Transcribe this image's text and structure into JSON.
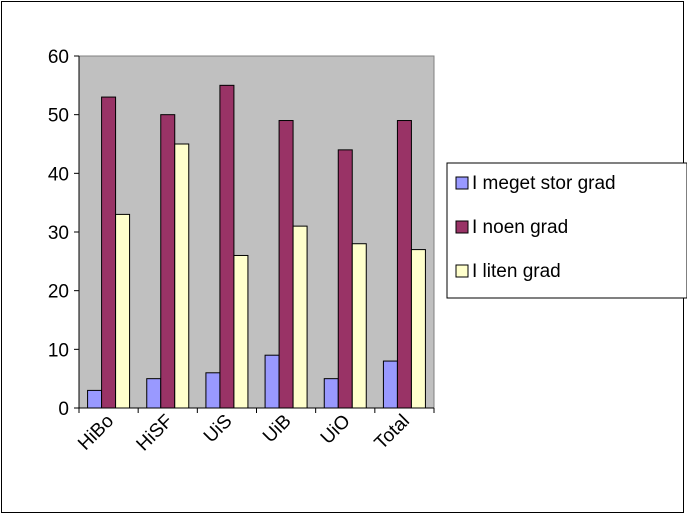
{
  "chart_data": {
    "type": "bar",
    "categories": [
      "HiBo",
      "HiSF",
      "UiS",
      "UiB",
      "UiO",
      "Total"
    ],
    "series": [
      {
        "name": "I meget stor grad",
        "values": [
          3,
          5,
          6,
          9,
          5,
          8
        ],
        "color": "#9999ff"
      },
      {
        "name": "I noen grad",
        "values": [
          53,
          50,
          55,
          49,
          44,
          49
        ],
        "color": "#993366"
      },
      {
        "name": "I liten grad",
        "values": [
          33,
          45,
          26,
          31,
          28,
          27
        ],
        "color": "#ffffcc"
      }
    ],
    "ylim": [
      0,
      60
    ],
    "yticks": [
      0,
      10,
      20,
      30,
      40,
      50,
      60
    ],
    "plot_background": "#c0c0c0",
    "grid": false,
    "legend_position": "right"
  }
}
